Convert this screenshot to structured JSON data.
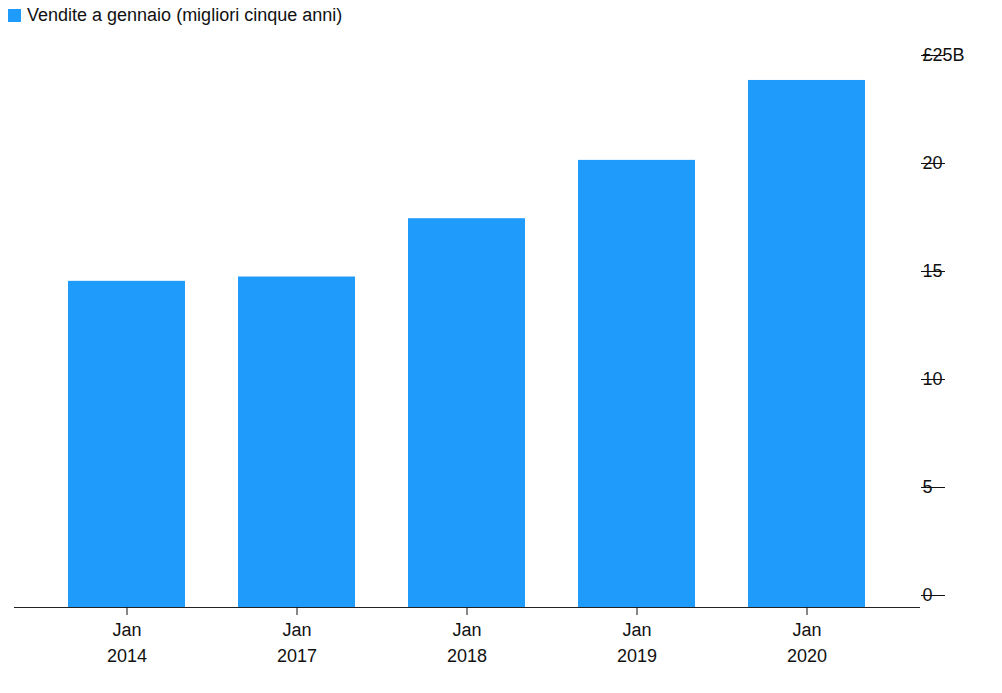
{
  "chart_data": {
    "type": "bar",
    "categories": [
      "Jan\n2014",
      "Jan\n2017",
      "Jan\n2018",
      "Jan\n2019",
      "Jan\n2020"
    ],
    "series": [
      {
        "name": "Vendite a gennaio (migliori cinque anni)",
        "color": "#1e9bfb",
        "values": [
          15.1,
          15.3,
          18.0,
          20.7,
          24.4
        ]
      }
    ],
    "ylim": [
      0,
      25
    ],
    "yticks": [
      0,
      5,
      10,
      15,
      20,
      {
        "value": 25,
        "label": "£25B"
      }
    ],
    "grid": false,
    "legend": "top-left"
  }
}
